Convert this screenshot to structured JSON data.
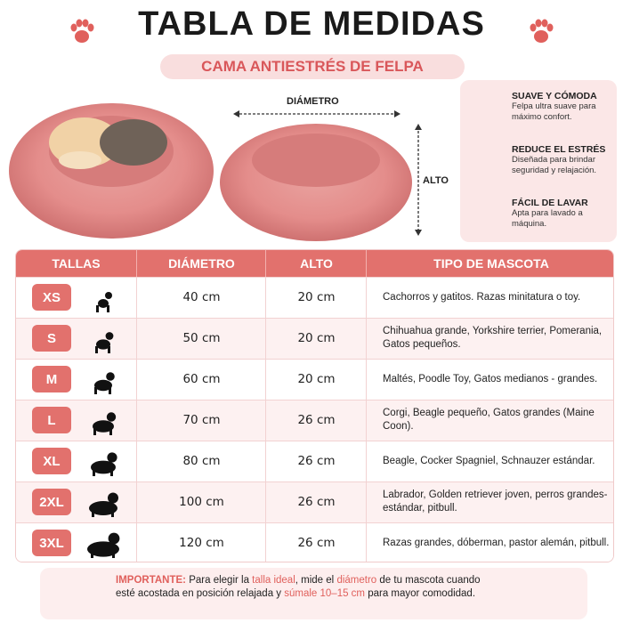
{
  "header": {
    "title": "TABLA DE MEDIDAS",
    "subtitle": "CAMA ANTIESTRÉS DE FELPA"
  },
  "diagram": {
    "width_label": "DIÁMETRO",
    "height_label": "ALTO"
  },
  "features": [
    {
      "title": "SUAVE Y CÓMODA",
      "text": "Felpa ultra suave para máximo confort."
    },
    {
      "title": "REDUCE EL ESTRÉS",
      "text": "Diseñada para brindar seguridad y relajación."
    },
    {
      "title": "FÁCIL DE LAVAR",
      "text": "Apta para lavado a máquina."
    }
  ],
  "table": {
    "columns": [
      "TALLAS",
      "DIÁMETRO",
      "ALTO",
      "TIPO DE MASCOTA"
    ],
    "rows": [
      [
        "XS",
        "40 cm",
        "20 cm",
        "Cachorros y gatitos. Razas minitatura o toy."
      ],
      [
        "S",
        "50 cm",
        "20 cm",
        "Chihuahua grande, Yorkshire terrier, Pomerania, Gatos pequeños."
      ],
      [
        "M",
        "60 cm",
        "20 cm",
        "Maltés, Poodle Toy, Gatos medianos - grandes."
      ],
      [
        "L",
        "70 cm",
        "26 cm",
        "Corgi, Beagle pequeño, Gatos grandes (Maine Coon)."
      ],
      [
        "XL",
        "80 cm",
        "26 cm",
        "Beagle, Cocker Spagniel, Schnauzer estándar."
      ],
      [
        "2XL",
        "100 cm",
        "26 cm",
        "Labrador, Golden retriever joven, perros grandes-estándar, pitbull."
      ],
      [
        "3XL",
        "120 cm",
        "26 cm",
        "Razas grandes, dóberman, pastor alemán, pitbull."
      ]
    ]
  },
  "note": {
    "parts": [
      "IMPORTANTE:",
      " Para elegir la ",
      "talla ideal",
      ", mide el ",
      "diámetro",
      " de tu mascota cuando esté acostada en posición relajada y ",
      "súmale 10–15 cm",
      " para mayor comodidad."
    ]
  }
}
